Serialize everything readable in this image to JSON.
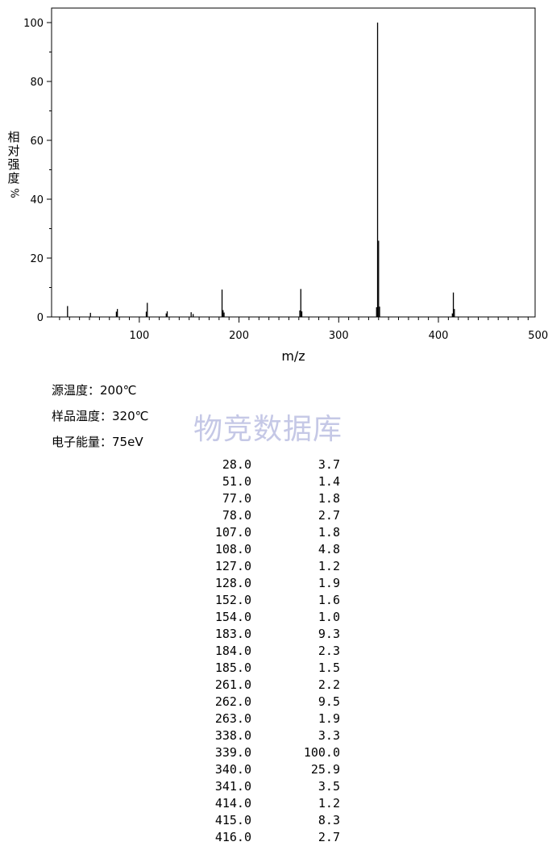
{
  "chart_data": {
    "type": "bar",
    "xlabel": "m/z",
    "ylabel_chars": [
      "相",
      "对",
      "强",
      "度"
    ],
    "ylabel_unit": "%",
    "xlim": [
      12,
      497
    ],
    "ylim": [
      0,
      100
    ],
    "xticks": [
      100,
      200,
      300,
      400,
      500
    ],
    "yticks": [
      0,
      20,
      40,
      60,
      80,
      100
    ],
    "peaks": [
      {
        "mz": 28.0,
        "intensity": 3.7
      },
      {
        "mz": 51.0,
        "intensity": 1.4
      },
      {
        "mz": 77.0,
        "intensity": 1.8
      },
      {
        "mz": 78.0,
        "intensity": 2.7
      },
      {
        "mz": 107.0,
        "intensity": 1.8
      },
      {
        "mz": 108.0,
        "intensity": 4.8
      },
      {
        "mz": 127.0,
        "intensity": 1.2
      },
      {
        "mz": 128.0,
        "intensity": 1.9
      },
      {
        "mz": 152.0,
        "intensity": 1.6
      },
      {
        "mz": 154.0,
        "intensity": 1.0
      },
      {
        "mz": 183.0,
        "intensity": 9.3
      },
      {
        "mz": 184.0,
        "intensity": 2.3
      },
      {
        "mz": 185.0,
        "intensity": 1.5
      },
      {
        "mz": 261.0,
        "intensity": 2.2
      },
      {
        "mz": 262.0,
        "intensity": 9.5
      },
      {
        "mz": 263.0,
        "intensity": 1.9
      },
      {
        "mz": 338.0,
        "intensity": 3.3
      },
      {
        "mz": 339.0,
        "intensity": 100.0
      },
      {
        "mz": 340.0,
        "intensity": 25.9
      },
      {
        "mz": 341.0,
        "intensity": 3.5
      },
      {
        "mz": 414.0,
        "intensity": 1.2
      },
      {
        "mz": 415.0,
        "intensity": 8.3
      },
      {
        "mz": 416.0,
        "intensity": 2.7
      }
    ]
  },
  "conditions": {
    "source_temp": "源温度：200℃",
    "sample_temp": "样品温度：320℃",
    "electron_energy": "电子能量：75eV"
  },
  "watermark": "物竞数据库",
  "table": [
    {
      "mz": "28.0",
      "intensity": "3.7"
    },
    {
      "mz": "51.0",
      "intensity": "1.4"
    },
    {
      "mz": "77.0",
      "intensity": "1.8"
    },
    {
      "mz": "78.0",
      "intensity": "2.7"
    },
    {
      "mz": "107.0",
      "intensity": "1.8"
    },
    {
      "mz": "108.0",
      "intensity": "4.8"
    },
    {
      "mz": "127.0",
      "intensity": "1.2"
    },
    {
      "mz": "128.0",
      "intensity": "1.9"
    },
    {
      "mz": "152.0",
      "intensity": "1.6"
    },
    {
      "mz": "154.0",
      "intensity": "1.0"
    },
    {
      "mz": "183.0",
      "intensity": "9.3"
    },
    {
      "mz": "184.0",
      "intensity": "2.3"
    },
    {
      "mz": "185.0",
      "intensity": "1.5"
    },
    {
      "mz": "261.0",
      "intensity": "2.2"
    },
    {
      "mz": "262.0",
      "intensity": "9.5"
    },
    {
      "mz": "263.0",
      "intensity": "1.9"
    },
    {
      "mz": "338.0",
      "intensity": "3.3"
    },
    {
      "mz": "339.0",
      "intensity": "100.0"
    },
    {
      "mz": "340.0",
      "intensity": "25.9"
    },
    {
      "mz": "341.0",
      "intensity": "3.5"
    },
    {
      "mz": "414.0",
      "intensity": "1.2"
    },
    {
      "mz": "415.0",
      "intensity": "8.3"
    },
    {
      "mz": "416.0",
      "intensity": "2.7"
    }
  ]
}
